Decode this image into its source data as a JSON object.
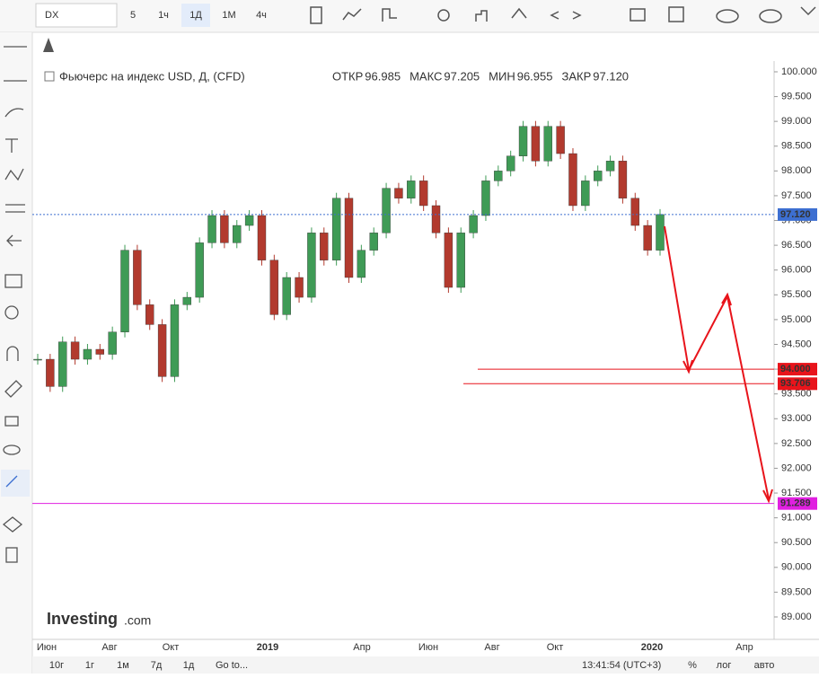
{
  "toolbar": {
    "symbol": "DX",
    "intervals": [
      "5",
      "1ч",
      "1Д",
      "1М",
      "4ч"
    ]
  },
  "chart_data": {
    "type": "candlestick",
    "title": "Фьючерс на индекс USD, Д, (CFD)",
    "ohlc_labels": [
      {
        "name": "ОТКР",
        "value": 96.985
      },
      {
        "name": "МАКС",
        "value": 97.205
      },
      {
        "name": "МИН",
        "value": 96.955
      },
      {
        "name": "ЗАКР",
        "value": {
          "value": 97.12,
          "label": "97.120"
        }
      }
    ],
    "values": [
      94.2,
      93.65,
      94.55,
      94.2,
      94.4,
      94.3,
      94.75,
      96.4,
      95.3,
      94.9,
      93.85,
      95.3,
      95.45,
      96.55,
      97.1,
      96.55,
      96.9,
      97.1,
      96.2,
      95.1,
      95.85,
      95.45,
      96.75,
      96.2,
      97.45,
      95.85,
      96.4,
      96.75,
      97.65,
      97.45,
      97.8,
      97.3,
      96.75,
      95.65,
      96.75,
      97.1,
      97.8,
      98.0,
      98.3,
      98.9,
      98.2,
      98.9,
      98.35,
      97.3,
      97.8,
      98.0,
      98.2,
      97.45,
      96.9,
      96.4,
      97.12
    ],
    "up_color": "#3f9b56",
    "down_color": "#b23a2e",
    "ylim": [
      88.547,
      100.217
    ],
    "yticks": [
      {
        "value": 89,
        "label": "89.000"
      },
      {
        "value": 89.5,
        "label": "89.500"
      },
      {
        "value": 90,
        "label": "90.000"
      },
      {
        "value": 90.5,
        "label": "90.500"
      },
      {
        "value": 91,
        "label": "91.000"
      },
      {
        "value": 91.5,
        "label": "91.500"
      },
      {
        "value": 92,
        "label": "92.000"
      },
      {
        "value": 92.5,
        "label": "92.500"
      },
      {
        "value": 93,
        "label": "93.000"
      },
      {
        "value": 93.5,
        "label": "93.500"
      },
      {
        "value": 94,
        "label": "94.000"
      },
      {
        "value": 94.5,
        "label": "94.500"
      },
      {
        "value": 95,
        "label": "95.000"
      },
      {
        "value": 95.5,
        "label": "95.500"
      },
      {
        "value": 96,
        "label": "96.000"
      },
      {
        "value": 96.5,
        "label": "96.500"
      },
      {
        "value": 97,
        "label": "97.000"
      },
      {
        "value": 97.5,
        "label": "97.500"
      },
      {
        "value": 98,
        "label": "98.000"
      },
      {
        "value": 98.5,
        "label": "98.500"
      },
      {
        "value": 99,
        "label": "99.000"
      },
      {
        "value": 99.5,
        "label": "99.500"
      },
      {
        "value": 100,
        "label": "100.000"
      }
    ],
    "xtick_labels": [
      "Июн",
      "Авг",
      "Окт",
      "2019",
      "Апр",
      "Июн",
      "Авг",
      "Окт",
      "2020",
      "Апр"
    ],
    "levels": [
      {
        "value": 97.12,
        "label": "97.120",
        "color": "#3d6fd1"
      },
      {
        "value": 94,
        "label": "94.000",
        "color": "#e8141b"
      },
      {
        "value": 93.706,
        "label": "93.706",
        "color": "#e8141b"
      },
      {
        "value": 91.289,
        "label": "91.289",
        "color": "#e020e0"
      }
    ]
  },
  "footer": {
    "ranges": [
      "10г",
      "1г",
      "1м",
      "7д",
      "1д"
    ],
    "goto": "Go to...",
    "time": "13:41:54 (UTC+3)",
    "scale_buttons": [
      "%",
      "лог",
      "авто"
    ]
  },
  "logo": {
    "brand": "Investing",
    "suffix": ".com"
  }
}
